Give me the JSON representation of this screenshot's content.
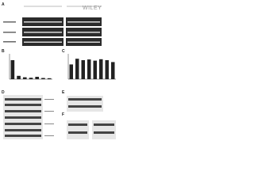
{
  "watermark": "WILEY",
  "panels": [
    {
      "label": "A"
    },
    {
      "label": "B",
      "values": [
        80,
        14,
        8,
        6,
        10,
        5,
        4
      ],
      "ylim": [
        0,
        100
      ]
    },
    {
      "label": "C",
      "values": [
        62,
        86,
        80,
        83,
        78,
        84,
        80,
        72
      ],
      "ylim": [
        0,
        100
      ]
    },
    {
      "label": "D"
    },
    {
      "label": "E"
    },
    {
      "label": "F"
    }
  ]
}
